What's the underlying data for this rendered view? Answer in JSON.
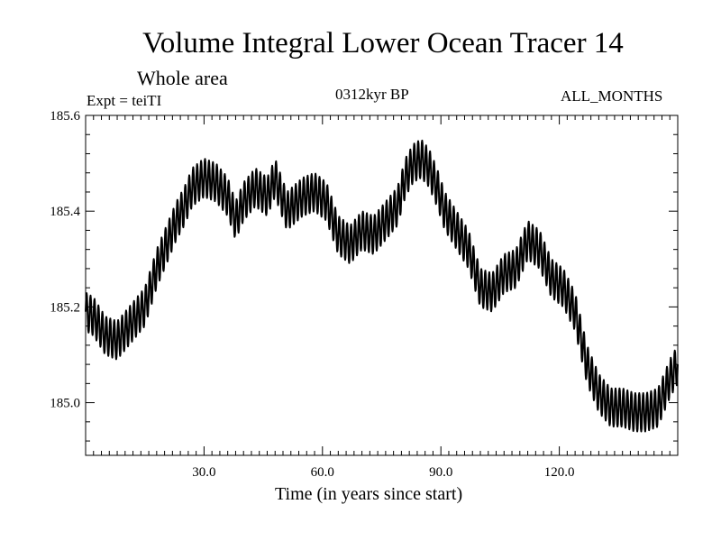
{
  "chart_data": {
    "type": "line",
    "title": "Volume Integral Lower Ocean Tracer 14",
    "subtitle": "Whole area",
    "experiment": "Expt = teiTI",
    "period": "0312kyr BP",
    "months": "ALL_MONTHS",
    "xlabel": "Time (in years since start)",
    "ylabel": "",
    "xlim": [
      0,
      150
    ],
    "ylim": [
      184.89,
      185.6
    ],
    "x_ticks": [
      30,
      60,
      90,
      120
    ],
    "x_tick_labels": [
      "30.0",
      "60.0",
      "90.0",
      "120.0"
    ],
    "y_ticks": [
      185.0,
      185.2,
      185.4,
      185.6
    ],
    "y_tick_labels": [
      "185.0",
      "185.2",
      "185.4",
      "185.6"
    ],
    "series": [
      {
        "name": "Volume Integral Lower Ocean Tracer 14",
        "seasonal_amplitude": 0.04,
        "trend": {
          "x": [
            0,
            2,
            5,
            8,
            12,
            15,
            18,
            21,
            23,
            25,
            27,
            30,
            33,
            36,
            38,
            40,
            43,
            46,
            48,
            51,
            55,
            58,
            61,
            64,
            67,
            70,
            73,
            76,
            79,
            81,
            83,
            85,
            87,
            89,
            91,
            94,
            97,
            100,
            103,
            106,
            109,
            112,
            115,
            118,
            121,
            124,
            127,
            130,
            133,
            136,
            139,
            142,
            145,
            148,
            150
          ],
          "y": [
            185.19,
            185.18,
            185.14,
            185.13,
            185.17,
            185.2,
            185.28,
            185.34,
            185.38,
            185.41,
            185.45,
            185.47,
            185.46,
            185.43,
            185.38,
            185.42,
            185.45,
            185.43,
            185.47,
            185.4,
            185.43,
            185.44,
            185.42,
            185.35,
            185.33,
            185.36,
            185.35,
            185.38,
            185.41,
            185.47,
            185.5,
            185.51,
            185.49,
            185.45,
            185.4,
            185.36,
            185.32,
            185.24,
            185.23,
            185.27,
            185.28,
            185.34,
            185.32,
            185.26,
            185.24,
            185.19,
            185.08,
            185.02,
            184.99,
            184.99,
            184.98,
            184.98,
            184.99,
            185.05,
            185.08
          ]
        }
      }
    ]
  }
}
